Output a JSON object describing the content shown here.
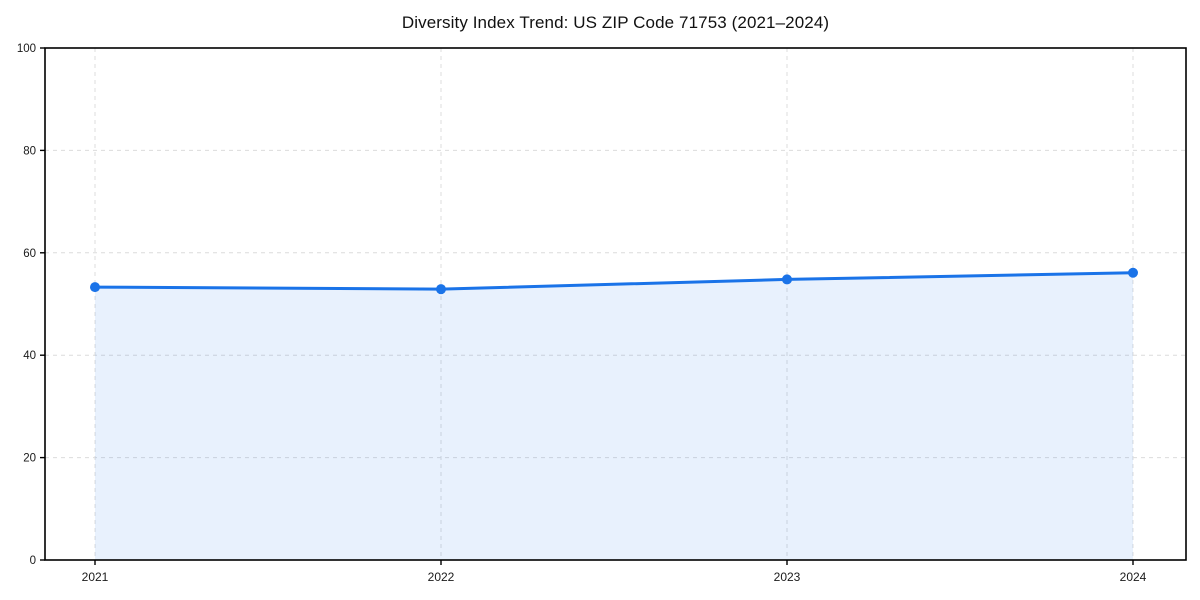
{
  "chart_data": {
    "type": "area",
    "title": "Diversity Index Trend: US ZIP Code 71753 (2021–2024)",
    "categories": [
      "2021",
      "2022",
      "2023",
      "2024"
    ],
    "series": [
      {
        "name": "Diversity Index",
        "values": [
          53.3,
          52.9,
          54.8,
          56.1
        ]
      }
    ],
    "xlabel": "",
    "ylabel": "",
    "ylim": [
      0,
      100
    ],
    "yticks": [
      0,
      20,
      40,
      60,
      80,
      100
    ],
    "grid": "dashed",
    "legend_position": "none",
    "colors": {
      "line": "#1a73e8",
      "marker": "#1a73e8",
      "fill": "#1a73e8",
      "fill_opacity": "0.10",
      "gridline": "#dcdcdc",
      "axis": "#000000",
      "tick_text": "#1a1a1a"
    }
  }
}
